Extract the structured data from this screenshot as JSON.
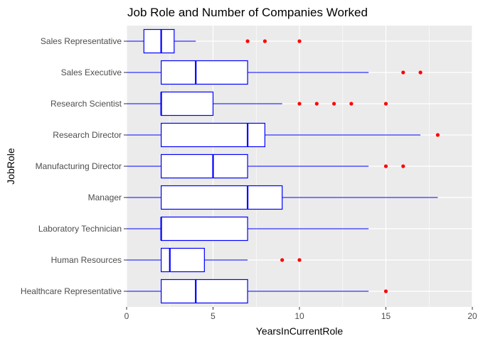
{
  "chart_data": {
    "type": "boxplot",
    "title": "Job Role and Number of Companies Worked",
    "xlabel": "YearsInCurrentRole",
    "ylabel": "JobRole",
    "xlim": [
      0,
      20
    ],
    "xticks": [
      0,
      5,
      10,
      15,
      20
    ],
    "grid": true,
    "colors": {
      "panel": "#ebebeb",
      "grid": "#ffffff",
      "box_stroke": "#0000ff",
      "box_fill": "#ffffff",
      "outlier": "#ff0000"
    },
    "categories": [
      "Healthcare Representative",
      "Human Resources",
      "Laboratory Technician",
      "Manager",
      "Manufacturing Director",
      "Research Director",
      "Research Scientist",
      "Sales Executive",
      "Sales Representative"
    ],
    "boxes": [
      {
        "min": 0,
        "q1": 2,
        "median": 4,
        "q3": 7,
        "max": 14,
        "outliers": [
          15
        ]
      },
      {
        "min": 0,
        "q1": 2,
        "median": 2.5,
        "q3": 4.5,
        "max": 7,
        "outliers": [
          9,
          10
        ]
      },
      {
        "min": 0,
        "q1": 2,
        "median": 2,
        "q3": 7,
        "max": 14,
        "outliers": []
      },
      {
        "min": 0,
        "q1": 2,
        "median": 7,
        "q3": 9,
        "max": 18,
        "outliers": []
      },
      {
        "min": 0,
        "q1": 2,
        "median": 5,
        "q3": 7,
        "max": 14,
        "outliers": [
          15,
          16
        ]
      },
      {
        "min": 0,
        "q1": 2,
        "median": 7,
        "q3": 8,
        "max": 17,
        "outliers": [
          18
        ]
      },
      {
        "min": 0,
        "q1": 2,
        "median": 2,
        "q3": 5,
        "max": 9,
        "outliers": [
          10,
          11,
          12,
          13,
          15
        ]
      },
      {
        "min": 0,
        "q1": 2,
        "median": 4,
        "q3": 7,
        "max": 14,
        "outliers": [
          16,
          17
        ]
      },
      {
        "min": 0,
        "q1": 1,
        "median": 2,
        "q3": 2.75,
        "max": 4,
        "outliers": [
          7,
          8,
          10
        ]
      }
    ]
  }
}
